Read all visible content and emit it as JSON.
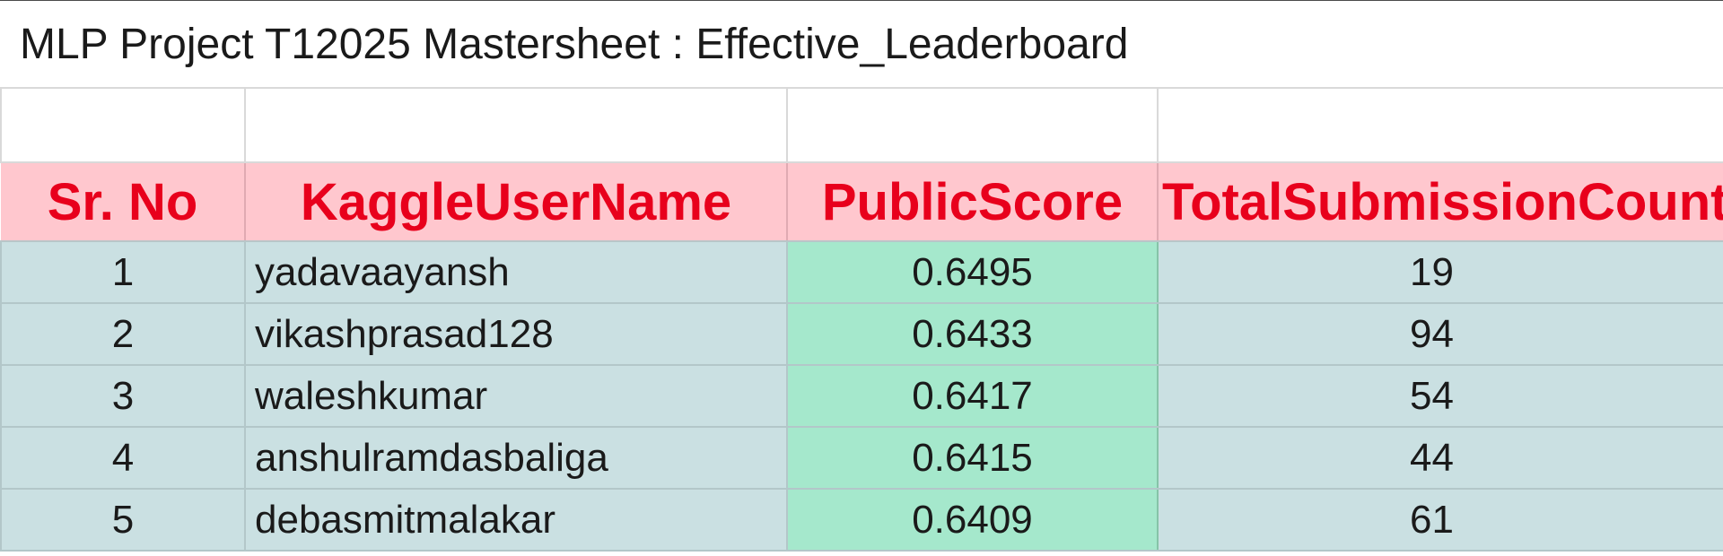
{
  "sheet": {
    "title": "MLP Project T12025 Mastersheet : Effective_Leaderboard",
    "columns": [
      "Sr. No",
      "KaggleUserName",
      "PublicScore",
      "TotalSubmissionCount"
    ],
    "rows": [
      {
        "sr": "1",
        "user": "yadavaayansh",
        "score": "0.6495",
        "count": "19"
      },
      {
        "sr": "2",
        "user": "vikashprasad128",
        "score": "0.6433",
        "count": "94"
      },
      {
        "sr": "3",
        "user": "waleshkumar",
        "score": "0.6417",
        "count": "54"
      },
      {
        "sr": "4",
        "user": "anshulramdasbaliga",
        "score": "0.6415",
        "count": "44"
      },
      {
        "sr": "5",
        "user": "debasmitmalakar",
        "score": "0.6409",
        "count": "61"
      }
    ]
  },
  "colors": {
    "header_bg": "#ffc7ce",
    "header_text": "#e8001c",
    "row_bg": "#cae0e2",
    "score_bg": "#a5e8cc"
  }
}
